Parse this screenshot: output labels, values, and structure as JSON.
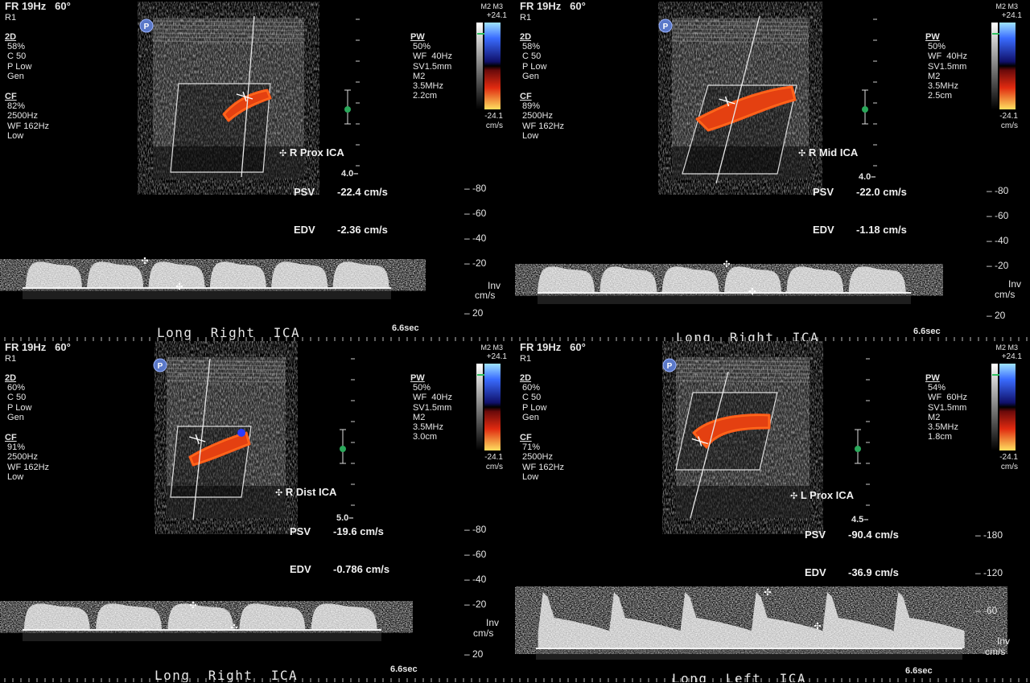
{
  "panels": [
    {
      "header": {
        "fr": "FR 19Hz",
        "angle": "60°",
        "r": "R1"
      },
      "twod": {
        "label": "2D",
        "lines": [
          "58%",
          "C 50",
          "P Low",
          "Gen"
        ]
      },
      "cf": {
        "label": "CF",
        "lines": [
          "82%",
          "2500Hz",
          "WF 162Hz",
          "Low"
        ]
      },
      "pw": {
        "label": "PW",
        "lines": [
          "50%",
          "WF  40Hz",
          "SV1.5mm",
          "M2",
          "3.5MHz",
          "2.2cm"
        ]
      },
      "colorbar": {
        "top_tag": "M2 M3",
        "top": "+24.1",
        "bottom": "-24.1",
        "unit": "cm/s"
      },
      "measurement": {
        "site": "R Prox ICA",
        "psv_label": "PSV",
        "psv": "-22.4 cm/s",
        "edv_label": "EDV",
        "edv": "-2.36 cm/s"
      },
      "depth": "4.0",
      "velocity_scale": [
        "-80",
        "-60",
        "-40",
        "-20",
        "20"
      ],
      "inv": "Inv",
      "unit": "cm/s",
      "footer": "Long  Right  ICA",
      "sweep": "6.6sec"
    },
    {
      "header": {
        "fr": "FR 19Hz",
        "angle": "60°",
        "r": "R1"
      },
      "twod": {
        "label": "2D",
        "lines": [
          "58%",
          "C 50",
          "P Low",
          "Gen"
        ]
      },
      "cf": {
        "label": "CF",
        "lines": [
          "89%",
          "2500Hz",
          "WF 162Hz",
          "Low"
        ]
      },
      "pw": {
        "label": "PW",
        "lines": [
          "50%",
          "WF  40Hz",
          "SV1.5mm",
          "M2",
          "3.5MHz",
          "2.5cm"
        ]
      },
      "colorbar": {
        "top_tag": "M2 M3",
        "top": "+24.1",
        "bottom": "-24.1",
        "unit": "cm/s"
      },
      "measurement": {
        "site": "R Mid ICA",
        "psv_label": "PSV",
        "psv": "-22.0 cm/s",
        "edv_label": "EDV",
        "edv": "-1.18 cm/s"
      },
      "depth": "4.0",
      "velocity_scale": [
        "-80",
        "-60",
        "-40",
        "-20",
        "20"
      ],
      "inv": "Inv",
      "unit": "cm/s",
      "footer": "Long  Right  ICA",
      "sweep": "6.6sec"
    },
    {
      "header": {
        "fr": "FR 19Hz",
        "angle": "60°",
        "r": "R1"
      },
      "twod": {
        "label": "2D",
        "lines": [
          "60%",
          "C 50",
          "P Low",
          "Gen"
        ]
      },
      "cf": {
        "label": "CF",
        "lines": [
          "91%",
          "2500Hz",
          "WF 162Hz",
          "Low"
        ]
      },
      "pw": {
        "label": "PW",
        "lines": [
          "50%",
          "WF  40Hz",
          "SV1.5mm",
          "M2",
          "3.5MHz",
          "3.0cm"
        ]
      },
      "colorbar": {
        "top_tag": "M2 M3",
        "top": "+24.1",
        "bottom": "-24.1",
        "unit": "cm/s"
      },
      "measurement": {
        "site": "R Dist ICA",
        "psv_label": "PSV",
        "psv": "-19.6 cm/s",
        "edv_label": "EDV",
        "edv": "-0.786 cm/s"
      },
      "depth": "5.0",
      "velocity_scale": [
        "-80",
        "-60",
        "-40",
        "-20",
        "20"
      ],
      "inv": "Inv",
      "unit": "cm/s",
      "footer": "Long  Right  ICA",
      "sweep": "6.6sec"
    },
    {
      "header": {
        "fr": "FR 19Hz",
        "angle": "60°",
        "r": "R1"
      },
      "twod": {
        "label": "2D",
        "lines": [
          "60%",
          "C 50",
          "P Low",
          "Gen"
        ]
      },
      "cf": {
        "label": "CF",
        "lines": [
          "71%",
          "2500Hz",
          "WF 162Hz",
          "Low"
        ]
      },
      "pw": {
        "label": "PW",
        "lines": [
          "54%",
          "WF  60Hz",
          "SV1.5mm",
          "M2",
          "3.5MHz",
          "1.8cm"
        ]
      },
      "colorbar": {
        "top_tag": "M2 M3",
        "top": "+24.1",
        "bottom": "-24.1",
        "unit": "cm/s"
      },
      "measurement": {
        "site": "L Prox ICA",
        "psv_label": "PSV",
        "psv": "-90.4 cm/s",
        "edv_label": "EDV",
        "edv": "-36.9 cm/s"
      },
      "depth": "4.5",
      "velocity_scale": [
        "-180",
        "-120",
        "-60"
      ],
      "inv": "Inv",
      "unit": "cm/s",
      "footer": "Long  Left  ICA",
      "sweep": "6.6sec"
    }
  ]
}
